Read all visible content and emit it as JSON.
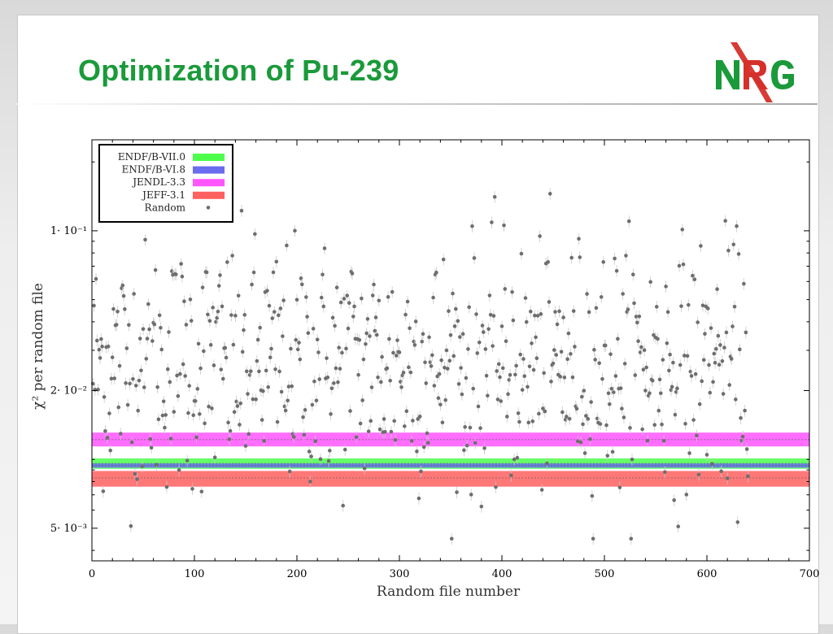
{
  "slide": {
    "title": "Optimization of Pu-239",
    "logo": {
      "letters": "NRG",
      "colors": {
        "n": "#1a9a3a",
        "r": "#d6302a",
        "g": "#1a9a3a"
      }
    }
  },
  "chart_data": {
    "type": "scatter",
    "title": "",
    "xlabel": "Random file number",
    "ylabel": "χ² per random file",
    "x_ticks": [
      0,
      100,
      200,
      300,
      400,
      500,
      600,
      700
    ],
    "y_scale": "log",
    "y_ticks": [
      {
        "value": 0.1,
        "label": "1· 10⁻¹"
      },
      {
        "value": 0.02,
        "label": "2· 10⁻²"
      },
      {
        "value": 0.005,
        "label": "5· 10⁻³"
      }
    ],
    "xlim": [
      0,
      700
    ],
    "ylim": [
      0.0036,
      0.25
    ],
    "grid": false,
    "legend_position": "top-left",
    "bands": [
      {
        "name": "ENDF/B-VII.0",
        "center": 0.0096,
        "low": 0.0091,
        "high": 0.0101,
        "color": "#4cff4c"
      },
      {
        "name": "ENDF/B-VI.8",
        "center": 0.0094,
        "low": 0.0092,
        "high": 0.0096,
        "color": "#6a6cf0"
      },
      {
        "name": "JENDL-3.3",
        "center": 0.0122,
        "low": 0.0114,
        "high": 0.0131,
        "color": "#ff55ff"
      },
      {
        "name": "JEFF-3.1",
        "center": 0.0083,
        "low": 0.0076,
        "high": 0.0089,
        "color": "#ff6060"
      }
    ],
    "scatter": {
      "name": "Random",
      "color": "#6e6e6e",
      "n_points": 640,
      "x_start": 1,
      "x_step": 1,
      "y_median": 0.026,
      "y_log_sigma": 0.62,
      "y_min": 0.0045,
      "y_max": 0.22,
      "error_fraction": 0.06
    },
    "legend": [
      {
        "label": "ENDF/B-VII.0",
        "color": "#4cff4c"
      },
      {
        "label": "ENDF/B-VI.8",
        "color": "#6a6cf0"
      },
      {
        "label": "JENDL-3.3",
        "color": "#ff55ff"
      },
      {
        "label": "JEFF-3.1",
        "color": "#ff6060"
      },
      {
        "label": "Random",
        "color": "#6e6e6e"
      }
    ]
  }
}
